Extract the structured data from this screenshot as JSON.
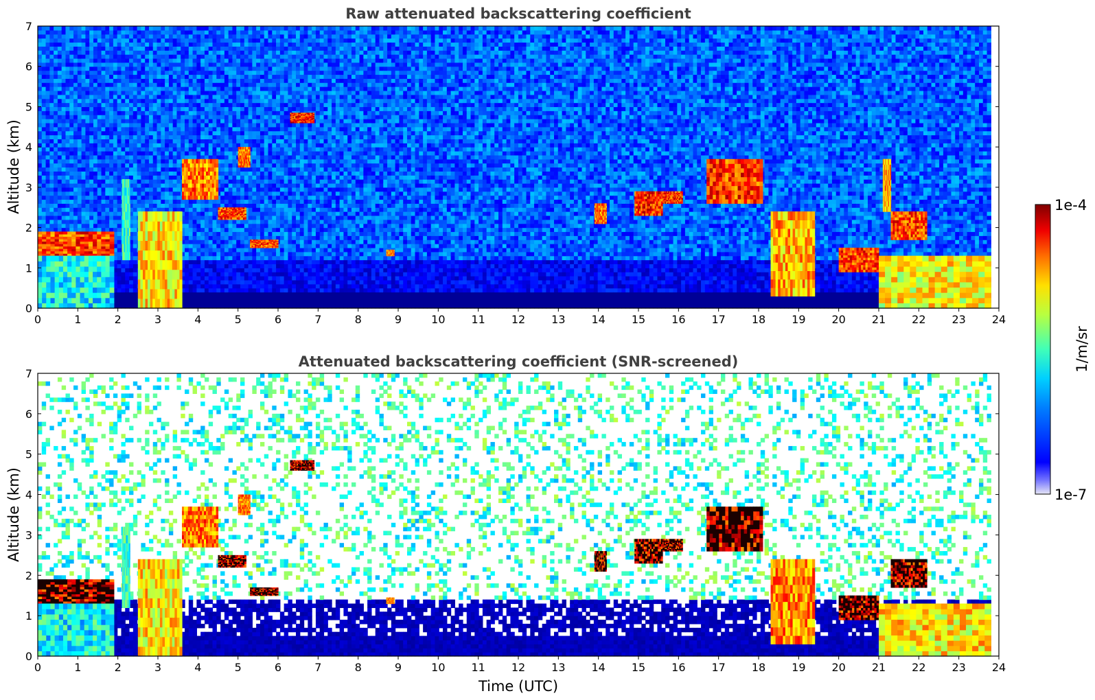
{
  "chart_data": [
    {
      "type": "heatmap",
      "title": "Raw attenuated backscattering coefficient",
      "xlabel": "",
      "ylabel": "Altitude (km)",
      "xlim": [
        0,
        24
      ],
      "ylim": [
        0,
        7
      ],
      "x_ticks": [
        "0",
        "1",
        "2",
        "3",
        "4",
        "5",
        "6",
        "7",
        "8",
        "9",
        "10",
        "11",
        "12",
        "13",
        "14",
        "15",
        "16",
        "17",
        "18",
        "19",
        "20",
        "21",
        "22",
        "23",
        "24"
      ],
      "y_ticks": [
        "0",
        "1",
        "2",
        "3",
        "4",
        "5",
        "6",
        "7"
      ],
      "x_tick_values": [
        0,
        1,
        2,
        3,
        4,
        5,
        6,
        7,
        8,
        9,
        10,
        11,
        12,
        13,
        14,
        15,
        16,
        17,
        18,
        19,
        20,
        21,
        22,
        23,
        24
      ],
      "y_tick_values": [
        0,
        1,
        2,
        3,
        4,
        5,
        6,
        7
      ],
      "data_end_time": 23.8,
      "screened": false,
      "background_level": 0.28,
      "near_surface_level": 0.05,
      "cloud_layers": [
        {
          "t": [
            0,
            1.9
          ],
          "alt": [
            1.3,
            1.9
          ],
          "level": 0.95
        },
        {
          "t": [
            0,
            1.9
          ],
          "alt": [
            0,
            1.3
          ],
          "level": 0.55
        },
        {
          "t": [
            2.1,
            2.3
          ],
          "alt": [
            1.2,
            3.2
          ],
          "level": 0.6
        },
        {
          "t": [
            2.5,
            3.6
          ],
          "alt": [
            0,
            2.4
          ],
          "level": 0.8
        },
        {
          "t": [
            3.6,
            4.5
          ],
          "alt": [
            2.7,
            3.7
          ],
          "level": 0.9
        },
        {
          "t": [
            4.5,
            5.2
          ],
          "alt": [
            2.2,
            2.5
          ],
          "level": 0.95
        },
        {
          "t": [
            5.0,
            5.3
          ],
          "alt": [
            3.5,
            4.0
          ],
          "level": 0.9
        },
        {
          "t": [
            5.3,
            6.0
          ],
          "alt": [
            1.5,
            1.7
          ],
          "level": 0.95
        },
        {
          "t": [
            6.3,
            6.9
          ],
          "alt": [
            4.6,
            4.85
          ],
          "level": 0.98
        },
        {
          "t": [
            8.7,
            8.9
          ],
          "alt": [
            1.3,
            1.45
          ],
          "level": 0.9
        },
        {
          "t": [
            13.9,
            14.2
          ],
          "alt": [
            2.1,
            2.6
          ],
          "level": 0.9
        },
        {
          "t": [
            14.9,
            15.6
          ],
          "alt": [
            2.3,
            2.9
          ],
          "level": 0.97
        },
        {
          "t": [
            15.6,
            16.1
          ],
          "alt": [
            2.6,
            2.9
          ],
          "level": 0.97
        },
        {
          "t": [
            16.7,
            18.1
          ],
          "alt": [
            2.6,
            3.7
          ],
          "level": 0.96
        },
        {
          "t": [
            18.3,
            19.4
          ],
          "alt": [
            0.3,
            2.4
          ],
          "level": 0.85
        },
        {
          "t": [
            20.0,
            21.0
          ],
          "alt": [
            0.9,
            1.5
          ],
          "level": 0.95
        },
        {
          "t": [
            21.1,
            21.3
          ],
          "alt": [
            2.4,
            3.7
          ],
          "level": 0.85
        },
        {
          "t": [
            21.3,
            22.2
          ],
          "alt": [
            1.7,
            2.4
          ],
          "level": 0.95
        },
        {
          "t": [
            21.0,
            23.8
          ],
          "alt": [
            0,
            1.3
          ],
          "level": 0.78
        }
      ]
    },
    {
      "type": "heatmap",
      "title": "Attenuated backscattering coefficient (SNR-screened)",
      "xlabel": "Time (UTC)",
      "ylabel": "Altitude (km)",
      "xlim": [
        0,
        24
      ],
      "ylim": [
        0,
        7
      ],
      "x_ticks": [
        "0",
        "1",
        "2",
        "3",
        "4",
        "5",
        "6",
        "7",
        "8",
        "9",
        "10",
        "11",
        "12",
        "13",
        "14",
        "15",
        "16",
        "17",
        "18",
        "19",
        "20",
        "21",
        "22",
        "23",
        "24"
      ],
      "y_ticks": [
        "0",
        "1",
        "2",
        "3",
        "4",
        "5",
        "6",
        "7"
      ],
      "x_tick_values": [
        0,
        1,
        2,
        3,
        4,
        5,
        6,
        7,
        8,
        9,
        10,
        11,
        12,
        13,
        14,
        15,
        16,
        17,
        18,
        19,
        20,
        21,
        22,
        23,
        24
      ],
      "y_tick_values": [
        0,
        1,
        2,
        3,
        4,
        5,
        6,
        7
      ],
      "data_end_time": 23.8,
      "screened": true,
      "background_level": 0.35,
      "near_surface_level": 0.05,
      "cloud_layers": [
        {
          "t": [
            0,
            1.9
          ],
          "alt": [
            1.3,
            1.9
          ],
          "level": 1.0
        },
        {
          "t": [
            0,
            1.9
          ],
          "alt": [
            0,
            1.3
          ],
          "level": 0.55
        },
        {
          "t": [
            2.1,
            2.3
          ],
          "alt": [
            1.2,
            3.2
          ],
          "level": 0.6
        },
        {
          "t": [
            2.5,
            3.6
          ],
          "alt": [
            0,
            2.4
          ],
          "level": 0.8
        },
        {
          "t": [
            3.6,
            4.5
          ],
          "alt": [
            2.7,
            3.7
          ],
          "level": 0.9
        },
        {
          "t": [
            4.5,
            5.2
          ],
          "alt": [
            2.2,
            2.5
          ],
          "level": 1.0
        },
        {
          "t": [
            5.0,
            5.3
          ],
          "alt": [
            3.5,
            4.0
          ],
          "level": 0.9
        },
        {
          "t": [
            5.3,
            6.0
          ],
          "alt": [
            1.5,
            1.7
          ],
          "level": 1.0
        },
        {
          "t": [
            6.3,
            6.9
          ],
          "alt": [
            4.6,
            4.85
          ],
          "level": 1.0
        },
        {
          "t": [
            8.7,
            8.9
          ],
          "alt": [
            1.3,
            1.45
          ],
          "level": 0.9
        },
        {
          "t": [
            13.9,
            14.2
          ],
          "alt": [
            2.1,
            2.6
          ],
          "level": 0.95
        },
        {
          "t": [
            14.9,
            15.6
          ],
          "alt": [
            2.3,
            2.9
          ],
          "level": 1.0
        },
        {
          "t": [
            15.6,
            16.1
          ],
          "alt": [
            2.6,
            2.9
          ],
          "level": 1.0
        },
        {
          "t": [
            16.7,
            18.1
          ],
          "alt": [
            2.6,
            3.7
          ],
          "level": 1.0
        },
        {
          "t": [
            18.3,
            19.4
          ],
          "alt": [
            0.3,
            2.4
          ],
          "level": 0.88
        },
        {
          "t": [
            20.0,
            21.0
          ],
          "alt": [
            0.9,
            1.5
          ],
          "level": 1.0
        },
        {
          "t": [
            21.3,
            22.2
          ],
          "alt": [
            1.7,
            2.4
          ],
          "level": 1.0
        },
        {
          "t": [
            21.0,
            23.8
          ],
          "alt": [
            0,
            1.3
          ],
          "level": 0.8
        }
      ]
    }
  ],
  "colorbar": {
    "label": "1/m/sr",
    "max_label": "1e-4",
    "min_label": "1e-7",
    "colormap": "jet",
    "min_color": "#e6e6f5",
    "max_color": "#800000"
  }
}
